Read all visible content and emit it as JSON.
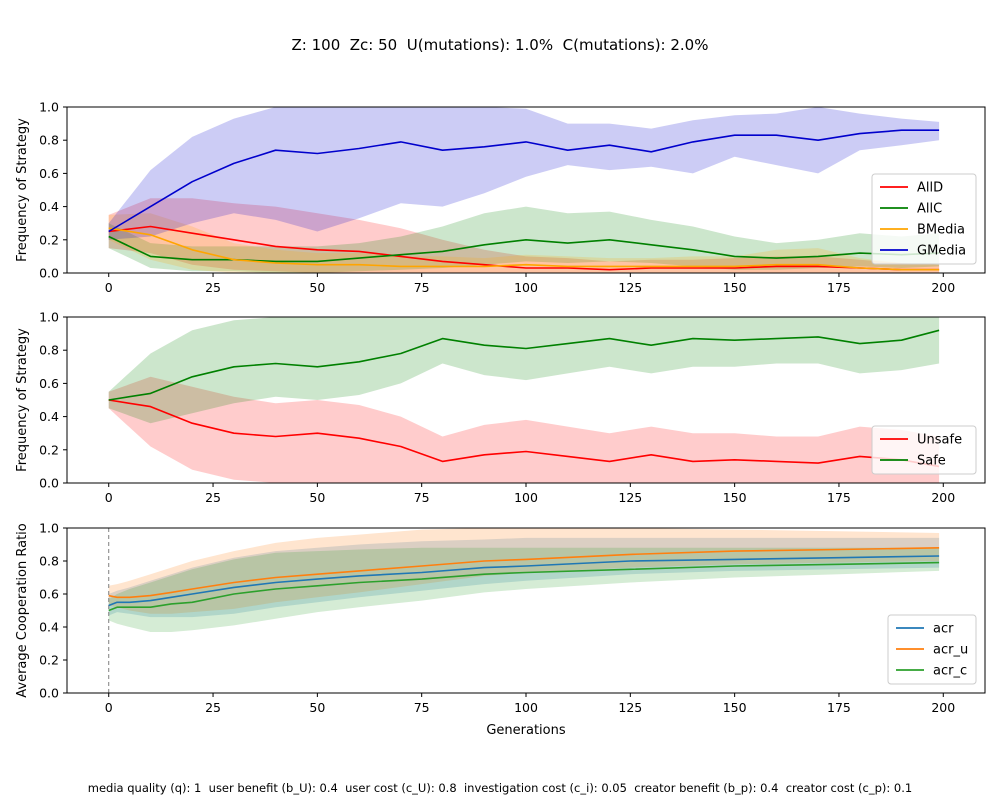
{
  "figure": {
    "suptitle": "Z: 100  Zc: 50  U(mutations): 1.0%  C(mutations): 2.0%",
    "footer": "media quality (q): 1  user benefit (b_U): 0.4  user cost (c_U): 0.8  investigation cost (c_i): 0.05  creator benefit (b_p): 0.4  creator cost (c_p): 0.1"
  },
  "chart_data": [
    {
      "type": "line",
      "ylabel": "Frequency of Strategy",
      "xlabel": "",
      "xlim": [
        -10,
        210
      ],
      "ylim": [
        0,
        1
      ],
      "xticks": [
        0,
        25,
        50,
        75,
        100,
        125,
        150,
        175,
        200
      ],
      "yticks": [
        0.0,
        0.2,
        0.4,
        0.6,
        0.8,
        1.0
      ],
      "legend_position": "lower-right",
      "x": [
        0,
        10,
        20,
        30,
        40,
        50,
        60,
        70,
        80,
        90,
        100,
        110,
        120,
        130,
        140,
        150,
        160,
        170,
        180,
        190,
        199
      ],
      "series": [
        {
          "name": "AllD",
          "color": "#ff0000",
          "values": [
            0.25,
            0.28,
            0.24,
            0.2,
            0.16,
            0.14,
            0.13,
            0.1,
            0.07,
            0.05,
            0.03,
            0.03,
            0.02,
            0.03,
            0.03,
            0.03,
            0.04,
            0.04,
            0.03,
            0.02,
            0.02
          ],
          "lower": [
            0.15,
            0.12,
            0.05,
            0.02,
            0.01,
            0.0,
            0.0,
            0.0,
            0.0,
            0.0,
            0.0,
            0.0,
            0.0,
            0.0,
            0.0,
            0.0,
            0.0,
            0.0,
            0.0,
            0.0,
            0.0
          ],
          "upper": [
            0.35,
            0.45,
            0.45,
            0.42,
            0.4,
            0.36,
            0.32,
            0.27,
            0.2,
            0.14,
            0.1,
            0.09,
            0.07,
            0.08,
            0.08,
            0.09,
            0.1,
            0.1,
            0.08,
            0.06,
            0.05
          ]
        },
        {
          "name": "AllC",
          "color": "#008000",
          "values": [
            0.22,
            0.1,
            0.08,
            0.08,
            0.07,
            0.07,
            0.09,
            0.11,
            0.13,
            0.17,
            0.2,
            0.18,
            0.2,
            0.17,
            0.14,
            0.1,
            0.09,
            0.1,
            0.12,
            0.11,
            0.12
          ],
          "lower": [
            0.15,
            0.03,
            0.01,
            0.01,
            0.0,
            0.0,
            0.01,
            0.02,
            0.03,
            0.05,
            0.07,
            0.06,
            0.07,
            0.06,
            0.04,
            0.02,
            0.02,
            0.03,
            0.04,
            0.03,
            0.04
          ],
          "upper": [
            0.3,
            0.18,
            0.16,
            0.16,
            0.16,
            0.16,
            0.18,
            0.22,
            0.28,
            0.36,
            0.4,
            0.36,
            0.37,
            0.32,
            0.28,
            0.22,
            0.18,
            0.2,
            0.24,
            0.22,
            0.24
          ]
        },
        {
          "name": "BMedia",
          "color": "#ffa500",
          "values": [
            0.27,
            0.23,
            0.14,
            0.08,
            0.06,
            0.05,
            0.05,
            0.04,
            0.04,
            0.04,
            0.05,
            0.04,
            0.04,
            0.04,
            0.04,
            0.04,
            0.05,
            0.05,
            0.03,
            0.02,
            0.02
          ],
          "lower": [
            0.2,
            0.08,
            0.02,
            0.0,
            0.0,
            0.0,
            0.0,
            0.0,
            0.0,
            0.0,
            0.0,
            0.0,
            0.0,
            0.0,
            0.0,
            0.0,
            0.0,
            0.0,
            0.0,
            0.0,
            0.0
          ],
          "upper": [
            0.35,
            0.36,
            0.28,
            0.18,
            0.14,
            0.12,
            0.12,
            0.1,
            0.1,
            0.09,
            0.11,
            0.1,
            0.09,
            0.09,
            0.1,
            0.1,
            0.14,
            0.15,
            0.09,
            0.06,
            0.05
          ]
        },
        {
          "name": "GMedia",
          "color": "#0000cc",
          "values": [
            0.25,
            0.4,
            0.55,
            0.66,
            0.74,
            0.72,
            0.75,
            0.79,
            0.74,
            0.76,
            0.79,
            0.74,
            0.77,
            0.73,
            0.79,
            0.83,
            0.83,
            0.8,
            0.84,
            0.86,
            0.86
          ],
          "lower": [
            0.2,
            0.22,
            0.3,
            0.36,
            0.32,
            0.25,
            0.33,
            0.42,
            0.4,
            0.48,
            0.58,
            0.65,
            0.62,
            0.64,
            0.6,
            0.7,
            0.65,
            0.6,
            0.74,
            0.77,
            0.8
          ],
          "upper": [
            0.3,
            0.62,
            0.82,
            0.93,
            1.0,
            1.0,
            1.0,
            1.0,
            1.0,
            1.0,
            0.99,
            0.9,
            0.9,
            0.87,
            0.92,
            0.95,
            0.96,
            1.0,
            0.96,
            0.93,
            0.91
          ]
        }
      ]
    },
    {
      "type": "line",
      "ylabel": "Frequency of Strategy",
      "xlabel": "",
      "xlim": [
        -10,
        210
      ],
      "ylim": [
        0,
        1
      ],
      "xticks": [
        0,
        25,
        50,
        75,
        100,
        125,
        150,
        175,
        200
      ],
      "yticks": [
        0.0,
        0.2,
        0.4,
        0.6,
        0.8,
        1.0
      ],
      "legend_position": "lower-right",
      "x": [
        0,
        10,
        20,
        30,
        40,
        50,
        60,
        70,
        80,
        90,
        100,
        110,
        120,
        130,
        140,
        150,
        160,
        170,
        180,
        190,
        199
      ],
      "series": [
        {
          "name": "Unsafe",
          "color": "#ff0000",
          "values": [
            0.5,
            0.46,
            0.36,
            0.3,
            0.28,
            0.3,
            0.27,
            0.22,
            0.13,
            0.17,
            0.19,
            0.16,
            0.13,
            0.17,
            0.13,
            0.14,
            0.13,
            0.12,
            0.16,
            0.14,
            0.1
          ],
          "lower": [
            0.45,
            0.22,
            0.08,
            0.02,
            0.0,
            0.0,
            0.0,
            0.0,
            0.0,
            0.0,
            0.0,
            0.0,
            0.0,
            0.0,
            0.0,
            0.0,
            0.0,
            0.0,
            0.0,
            0.0,
            0.0
          ],
          "upper": [
            0.55,
            0.64,
            0.58,
            0.52,
            0.48,
            0.5,
            0.47,
            0.4,
            0.28,
            0.35,
            0.38,
            0.34,
            0.3,
            0.34,
            0.3,
            0.3,
            0.28,
            0.28,
            0.34,
            0.32,
            0.28
          ]
        },
        {
          "name": "Safe",
          "color": "#008000",
          "values": [
            0.5,
            0.54,
            0.64,
            0.7,
            0.72,
            0.7,
            0.73,
            0.78,
            0.87,
            0.83,
            0.81,
            0.84,
            0.87,
            0.83,
            0.87,
            0.86,
            0.87,
            0.88,
            0.84,
            0.86,
            0.92
          ],
          "lower": [
            0.45,
            0.36,
            0.42,
            0.48,
            0.52,
            0.5,
            0.53,
            0.6,
            0.72,
            0.65,
            0.62,
            0.66,
            0.7,
            0.66,
            0.7,
            0.7,
            0.72,
            0.72,
            0.66,
            0.68,
            0.72
          ],
          "upper": [
            0.55,
            0.78,
            0.92,
            0.98,
            1.0,
            1.0,
            1.0,
            1.0,
            1.0,
            1.0,
            1.0,
            1.0,
            1.0,
            1.0,
            1.0,
            1.0,
            1.0,
            1.0,
            1.0,
            1.0,
            1.0
          ]
        }
      ]
    },
    {
      "type": "line",
      "ylabel": "Average Cooperation Ratio",
      "xlabel": "Generations",
      "xlim": [
        -10,
        210
      ],
      "ylim": [
        0,
        1
      ],
      "xticks": [
        0,
        25,
        50,
        75,
        100,
        125,
        150,
        175,
        200
      ],
      "yticks": [
        0.0,
        0.2,
        0.4,
        0.6,
        0.8,
        1.0
      ],
      "legend_position": "lower-right",
      "vline_x": 0,
      "x": [
        0,
        2,
        5,
        10,
        15,
        20,
        30,
        40,
        50,
        60,
        75,
        90,
        100,
        125,
        150,
        175,
        199
      ],
      "series": [
        {
          "name": "acr",
          "color": "#1f77b4",
          "values": [
            0.53,
            0.55,
            0.55,
            0.56,
            0.58,
            0.6,
            0.64,
            0.67,
            0.69,
            0.71,
            0.73,
            0.76,
            0.77,
            0.8,
            0.81,
            0.82,
            0.83
          ],
          "lower": [
            0.47,
            0.49,
            0.48,
            0.46,
            0.46,
            0.46,
            0.48,
            0.52,
            0.55,
            0.58,
            0.62,
            0.66,
            0.68,
            0.72,
            0.74,
            0.75,
            0.76
          ],
          "upper": [
            0.6,
            0.62,
            0.64,
            0.68,
            0.72,
            0.76,
            0.82,
            0.86,
            0.88,
            0.9,
            0.92,
            0.93,
            0.94,
            0.94,
            0.94,
            0.94,
            0.94
          ]
        },
        {
          "name": "acr_u",
          "color": "#ff7f0e",
          "values": [
            0.59,
            0.58,
            0.58,
            0.59,
            0.61,
            0.63,
            0.67,
            0.7,
            0.72,
            0.74,
            0.77,
            0.8,
            0.81,
            0.84,
            0.86,
            0.87,
            0.88
          ],
          "lower": [
            0.53,
            0.52,
            0.5,
            0.48,
            0.48,
            0.49,
            0.51,
            0.55,
            0.58,
            0.61,
            0.66,
            0.71,
            0.73,
            0.76,
            0.78,
            0.79,
            0.8
          ],
          "upper": [
            0.65,
            0.66,
            0.68,
            0.72,
            0.76,
            0.8,
            0.86,
            0.91,
            0.94,
            0.96,
            0.99,
            1.0,
            1.0,
            1.0,
            0.99,
            0.98,
            0.97
          ]
        },
        {
          "name": "acr_c",
          "color": "#2ca02c",
          "values": [
            0.5,
            0.52,
            0.52,
            0.52,
            0.54,
            0.55,
            0.6,
            0.63,
            0.65,
            0.67,
            0.69,
            0.72,
            0.73,
            0.75,
            0.77,
            0.78,
            0.79
          ],
          "lower": [
            0.44,
            0.42,
            0.4,
            0.37,
            0.37,
            0.38,
            0.41,
            0.45,
            0.49,
            0.52,
            0.56,
            0.61,
            0.63,
            0.67,
            0.7,
            0.72,
            0.74
          ],
          "upper": [
            0.57,
            0.6,
            0.63,
            0.67,
            0.71,
            0.75,
            0.81,
            0.85,
            0.86,
            0.87,
            0.88,
            0.88,
            0.88,
            0.88,
            0.88,
            0.88,
            0.88
          ]
        }
      ]
    }
  ]
}
